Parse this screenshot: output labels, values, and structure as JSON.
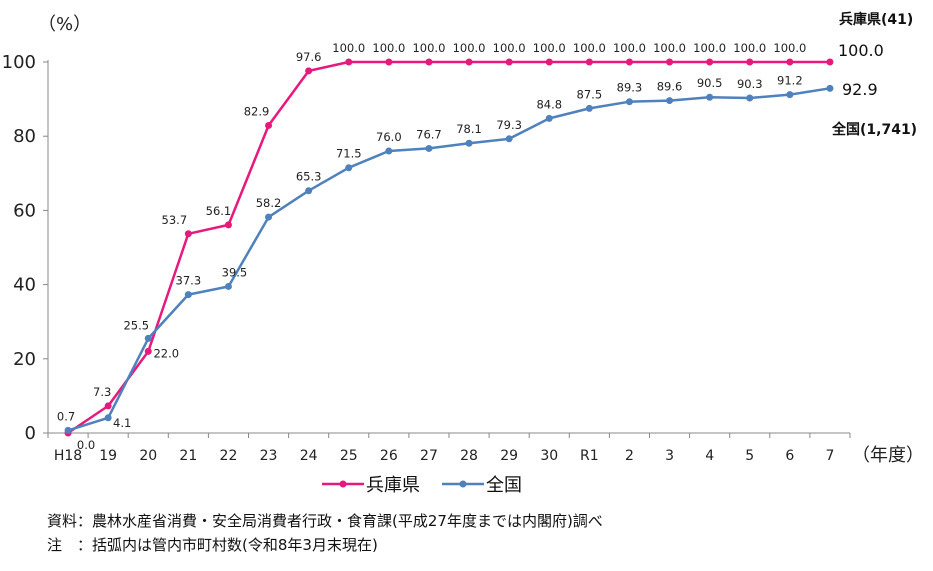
{
  "chart_data": {
    "type": "line",
    "y_unit": "（%）",
    "x_unit": "（年度）",
    "categories": [
      "H18",
      "19",
      "20",
      "21",
      "22",
      "23",
      "24",
      "25",
      "26",
      "27",
      "28",
      "29",
      "30",
      "R1",
      "2",
      "3",
      "4",
      "5",
      "6",
      "7"
    ],
    "ylim": [
      0,
      100
    ],
    "yticks": [
      0,
      20,
      40,
      60,
      80,
      100
    ],
    "grid": false,
    "legend_placement": "bottom",
    "series": [
      {
        "name": "兵庫県",
        "end_label": "兵庫県(41)",
        "last_value_label": "100.0",
        "color": "#e8197d",
        "values": [
          0.0,
          7.3,
          22.0,
          53.7,
          56.1,
          82.9,
          97.6,
          100.0,
          100.0,
          100.0,
          100.0,
          100.0,
          100.0,
          100.0,
          100.0,
          100.0,
          100.0,
          100.0,
          100.0,
          100.0
        ],
        "labels": [
          "0.0",
          "7.3",
          "22.0",
          "53.7",
          "56.1",
          "82.9",
          "97.6",
          "100.0",
          "100.0",
          "100.0",
          "100.0",
          "100.0",
          "100.0",
          "100.0",
          "100.0",
          "100.0",
          "100.0",
          "100.0",
          "100.0",
          ""
        ]
      },
      {
        "name": "全国",
        "end_label": "全国(1,741)",
        "last_value_label": "92.9",
        "color": "#4f81bd",
        "values": [
          0.7,
          4.1,
          25.5,
          37.3,
          39.5,
          58.2,
          65.3,
          71.5,
          76.0,
          76.7,
          78.1,
          79.3,
          84.8,
          87.5,
          89.3,
          89.6,
          90.5,
          90.3,
          91.2,
          92.9
        ],
        "labels": [
          "0.7",
          "4.1",
          "25.5",
          "37.3",
          "39.5",
          "58.2",
          "65.3",
          "71.5",
          "76.0",
          "76.7",
          "78.1",
          "79.3",
          "84.8",
          "87.5",
          "89.3",
          "89.6",
          "90.5",
          "90.3",
          "91.2",
          ""
        ]
      }
    ]
  },
  "notes": {
    "source": "資料：農林水産省消費・安全局消費者行政・食育課(平成27年度までは内閣府)調べ",
    "note": "注　：括弧内は管内市町村数(令和8年3月末現在)"
  }
}
